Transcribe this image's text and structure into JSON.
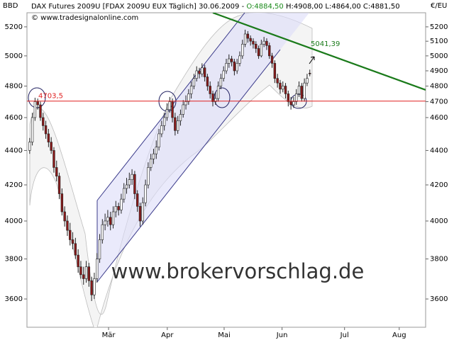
{
  "chart_data": {
    "type": "candlestick",
    "title": "DAX Futures 2009U [FDAX 2009U EUX  Täglich] 30.06.2009 -",
    "ohlc_label": {
      "open": "O:4884,50",
      "rest": "H:4908,00 L:4864,00 C:4881,50"
    },
    "source": "© www.tradesignalonline.com",
    "y_label": "BBD",
    "y2_label": "€/EU",
    "watermark": "www.brokervorschlag.de",
    "log_scale": true,
    "up_color": "#ffffff",
    "down_color": "#8b1a1a",
    "x": [
      1,
      2,
      3,
      4,
      5,
      6,
      7,
      8,
      9,
      10,
      11,
      12,
      13,
      14,
      15,
      16,
      17,
      18,
      19,
      20,
      21,
      22,
      23,
      24,
      25,
      26,
      27,
      28,
      29,
      30,
      31,
      32,
      33,
      34,
      35,
      36,
      37,
      38,
      39,
      40,
      41,
      42,
      43,
      44,
      45,
      46,
      47,
      48,
      49,
      50,
      51,
      52,
      53,
      54,
      55,
      56,
      57,
      58,
      59,
      60,
      61,
      62,
      63,
      64,
      65,
      66,
      67,
      68,
      69,
      70,
      71,
      72,
      73,
      74,
      75,
      76,
      77,
      78,
      79,
      80,
      81,
      82,
      83,
      84,
      85,
      86,
      87,
      88,
      89,
      90,
      91,
      92,
      93,
      94,
      95,
      96,
      97,
      98,
      99,
      100,
      101,
      102,
      103,
      104,
      105
    ],
    "open": [
      4400,
      4450,
      4600,
      4700,
      4680,
      4600,
      4550,
      4500,
      4450,
      4400,
      4300,
      4250,
      4150,
      4050,
      4000,
      3950,
      3900,
      3880,
      3820,
      3760,
      3720,
      3700,
      3760,
      3690,
      3620,
      3700,
      3800,
      3900,
      3980,
      4000,
      4020,
      3980,
      4050,
      4080,
      4060,
      4120,
      4180,
      4200,
      4230,
      4260,
      4150,
      4080,
      4000,
      4100,
      4200,
      4300,
      4350,
      4380,
      4420,
      4500,
      4550,
      4600,
      4650,
      4700,
      4600,
      4520,
      4580,
      4620,
      4680,
      4700,
      4750,
      4800,
      4850,
      4900,
      4880,
      4920,
      4860,
      4800,
      4750,
      4700,
      4720,
      4800,
      4850,
      4900,
      4950,
      4980,
      4960,
      4900,
      4950,
      5000,
      5080,
      5150,
      5120,
      5100,
      5080,
      5050,
      5000,
      5080,
      5100,
      5070,
      5000,
      4950,
      4850,
      4820,
      4780,
      4800,
      4750,
      4700,
      4680,
      4700,
      4750,
      4800,
      4720,
      4820,
      4884.5
    ],
    "high": [
      4475,
      4630,
      4725,
      4720,
      4700,
      4630,
      4580,
      4530,
      4480,
      4420,
      4340,
      4270,
      4180,
      4080,
      4030,
      3990,
      3940,
      3910,
      3850,
      3790,
      3760,
      3790,
      3780,
      3710,
      3730,
      3830,
      3930,
      4010,
      4040,
      4060,
      4050,
      4080,
      4110,
      4100,
      4150,
      4210,
      4240,
      4270,
      4290,
      4280,
      4170,
      4100,
      4130,
      4230,
      4330,
      4380,
      4410,
      4460,
      4530,
      4580,
      4630,
      4690,
      4730,
      4720,
      4630,
      4610,
      4650,
      4710,
      4740,
      4780,
      4830,
      4880,
      4930,
      4920,
      4950,
      4940,
      4880,
      4830,
      4770,
      4760,
      4830,
      4880,
      4930,
      4980,
      5010,
      5000,
      4980,
      4980,
      5030,
      5110,
      5180,
      5170,
      5140,
      5120,
      5100,
      5070,
      5110,
      5130,
      5120,
      5090,
      5020,
      4970,
      4880,
      4840,
      4830,
      4820,
      4770,
      4730,
      4730,
      4780,
      4830,
      4820,
      4850,
      4880,
      4908
    ],
    "low": [
      4380,
      4430,
      4580,
      4650,
      4580,
      4520,
      4470,
      4420,
      4380,
      4270,
      4220,
      4120,
      4030,
      3970,
      3920,
      3870,
      3850,
      3800,
      3730,
      3700,
      3670,
      3680,
      3660,
      3590,
      3600,
      3680,
      3780,
      3880,
      3950,
      3970,
      3950,
      3960,
      4020,
      4030,
      4040,
      4100,
      4150,
      4180,
      4200,
      4120,
      4050,
      3970,
      3980,
      4080,
      4180,
      4280,
      4320,
      4350,
      4400,
      4480,
      4520,
      4580,
      4630,
      4570,
      4490,
      4500,
      4550,
      4600,
      4650,
      4680,
      4720,
      4780,
      4830,
      4850,
      4860,
      4830,
      4770,
      4720,
      4670,
      4680,
      4700,
      4780,
      4830,
      4880,
      4920,
      4930,
      4870,
      4880,
      4930,
      4980,
      5060,
      5090,
      5070,
      5050,
      5020,
      4980,
      4990,
      5060,
      5040,
      4980,
      4920,
      4820,
      4790,
      4750,
      4760,
      4720,
      4670,
      4650,
      4660,
      4680,
      4730,
      4700,
      4700,
      4800,
      4864
    ],
    "close": [
      4450,
      4600,
      4700,
      4680,
      4600,
      4550,
      4500,
      4450,
      4400,
      4300,
      4250,
      4150,
      4050,
      4000,
      3950,
      3900,
      3880,
      3820,
      3760,
      3720,
      3700,
      3760,
      3690,
      3620,
      3700,
      3800,
      3900,
      3980,
      4000,
      4020,
      3980,
      4050,
      4080,
      4060,
      4120,
      4180,
      4200,
      4230,
      4260,
      4150,
      4080,
      4000,
      4100,
      4200,
      4300,
      4350,
      4380,
      4420,
      4500,
      4550,
      4600,
      4650,
      4700,
      4600,
      4520,
      4580,
      4620,
      4680,
      4700,
      4750,
      4800,
      4850,
      4900,
      4880,
      4920,
      4860,
      4800,
      4750,
      4700,
      4720,
      4800,
      4850,
      4900,
      4950,
      4980,
      4960,
      4900,
      4950,
      5000,
      5080,
      5150,
      5120,
      5100,
      5080,
      5050,
      5000,
      5080,
      5100,
      5070,
      5000,
      4950,
      4850,
      4820,
      4780,
      4800,
      4750,
      4700,
      4680,
      4700,
      4750,
      4800,
      4720,
      4820,
      4850,
      4881.5
    ],
    "xlim": [
      0,
      148
    ],
    "xticks": [
      {
        "value": 30.3,
        "label": "Mär"
      },
      {
        "value": 52.1,
        "label": "Apr"
      },
      {
        "value": 73.2,
        "label": "Mai"
      },
      {
        "value": 94.7,
        "label": "Jun"
      },
      {
        "value": 117.9,
        "label": "Jul"
      },
      {
        "value": 138.2,
        "label": "Aug"
      }
    ],
    "ylim": [
      3465,
      5300
    ],
    "yticks": [
      3600,
      3800,
      4000,
      4200,
      4400,
      4600,
      4800,
      5000,
      5200
    ],
    "y2lim": [
      3465,
      5300
    ],
    "y2ticks": [
      3600,
      3800,
      4000,
      4200,
      4400,
      4600,
      4700,
      4800,
      4900,
      5000,
      5100,
      5200
    ],
    "hline": {
      "value": 4703.5,
      "label": "4703,5",
      "color": "#e02020"
    },
    "trend_line": {
      "x": [
        69,
        148
      ],
      "values": [
        5300,
        4775
      ],
      "label": "5041,39",
      "color": "#1a7a1a"
    }
  }
}
